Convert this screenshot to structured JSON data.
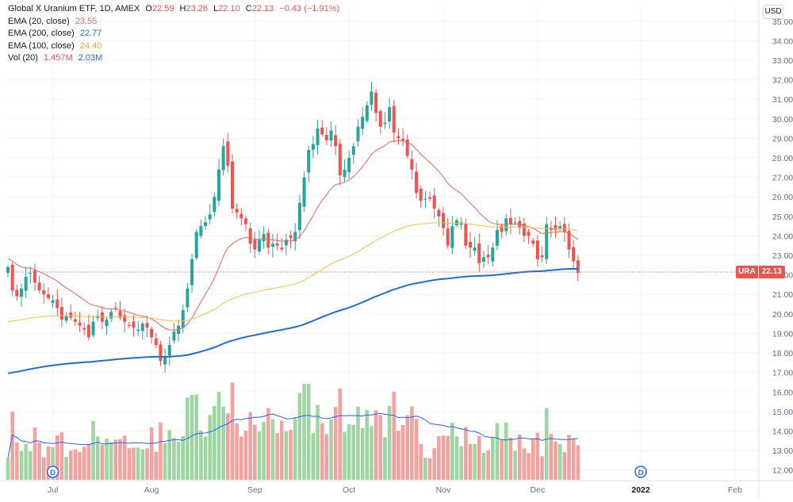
{
  "colors": {
    "up": "#26a69a",
    "down": "#ef5350",
    "vol_up": "#9fd5a2",
    "vol_down": "#f4a2a0",
    "ema20": "#f0645a",
    "ema100": "#f5c04a",
    "ema200": "#1f6ed4",
    "vol_ma": "#2962ff",
    "grid": "#f0f3fa",
    "text": "#131722",
    "axis_text": "#6a6d78"
  },
  "legend": {
    "title": "Global X Uranium ETF, 1D, AMEX",
    "o_label": "O",
    "o": "22.59",
    "h_label": "H",
    "h": "23.26",
    "l_label": "L",
    "l": "22.10",
    "c_label": "C",
    "c": "22.13",
    "chg": "−0.43 (−1.91%)",
    "ema20_label": "EMA (20, close)",
    "ema20": "23.55",
    "ema200_label": "EMA (200, close)",
    "ema200": "22.77",
    "ema100_label": "EMA (100, close)",
    "ema100": "24.40",
    "vol_label": "Vol (20)",
    "vol": "1.457M",
    "vol_ma": "2.03M"
  },
  "price_label": {
    "symbol": "URA",
    "price": "22.13"
  },
  "currency": "USD",
  "dividend_marker": "D",
  "chart_data": {
    "type": "candlestick",
    "symbol": "URA",
    "title": "Global X Uranium ETF, 1D, AMEX",
    "y_ticks": [
      "35.00",
      "34.00",
      "33.00",
      "32.00",
      "31.00",
      "30.00",
      "29.00",
      "28.00",
      "27.00",
      "26.00",
      "25.00",
      "24.00",
      "23.00",
      "22.00",
      "21.00",
      "20.00",
      "19.00",
      "18.00",
      "17.00",
      "16.00",
      "15.00",
      "14.00",
      "13.00",
      "12.00"
    ],
    "ylim": [
      11.5,
      35.6
    ],
    "x_ticks": [
      {
        "label": "Jul",
        "day": 10
      },
      {
        "label": "Aug",
        "day": 32
      },
      {
        "label": "Sep",
        "day": 55
      },
      {
        "label": "Oct",
        "day": 76
      },
      {
        "label": "Nov",
        "day": 97
      },
      {
        "label": "Dec",
        "day": 118
      },
      {
        "label": "2022",
        "day": 141
      },
      {
        "label": "Feb",
        "day": 162
      }
    ],
    "dividend_days": [
      10,
      141
    ],
    "last_price": 22.13,
    "close": [
      22.4,
      21.2,
      20.9,
      21.3,
      21.9,
      22.1,
      21.6,
      21.2,
      21.0,
      20.8,
      20.7,
      20.3,
      19.7,
      19.9,
      19.8,
      19.6,
      19.4,
      19.2,
      18.8,
      19.6,
      19.9,
      19.6,
      19.7,
      20.1,
      20.3,
      19.8,
      19.6,
      19.4,
      19.3,
      19.2,
      19.5,
      19.3,
      18.8,
      18.4,
      17.6,
      17.8,
      18.4,
      19.1,
      19.4,
      20.2,
      21.3,
      22.8,
      24.2,
      24.5,
      24.7,
      25.1,
      26.0,
      27.4,
      28.6,
      27.6,
      25.4,
      25.2,
      24.9,
      24.6,
      23.6,
      23.3,
      23.8,
      24.1,
      23.4,
      23.6,
      23.5,
      23.3,
      23.8,
      23.9,
      24.2,
      25.7,
      27.0,
      28.4,
      28.7,
      29.5,
      29.2,
      28.9,
      29.4,
      28.6,
      27.1,
      27.4,
      28.0,
      28.6,
      29.6,
      30.1,
      30.7,
      31.4,
      30.3,
      29.6,
      29.8,
      30.6,
      29.3,
      29.0,
      28.9,
      28.1,
      27.4,
      26.2,
      25.8,
      25.9,
      25.9,
      25.4,
      25.0,
      24.4,
      23.5,
      24.5,
      24.8,
      24.7,
      23.5,
      23.4,
      23.4,
      22.6,
      22.9,
      22.9,
      23.4,
      24.3,
      24.2,
      24.9,
      24.6,
      24.7,
      24.4,
      24.0,
      24.0,
      23.6,
      22.8,
      22.9,
      24.6,
      24.3,
      24.3,
      24.5,
      24.2,
      23.3,
      22.7,
      22.1
    ]
  }
}
